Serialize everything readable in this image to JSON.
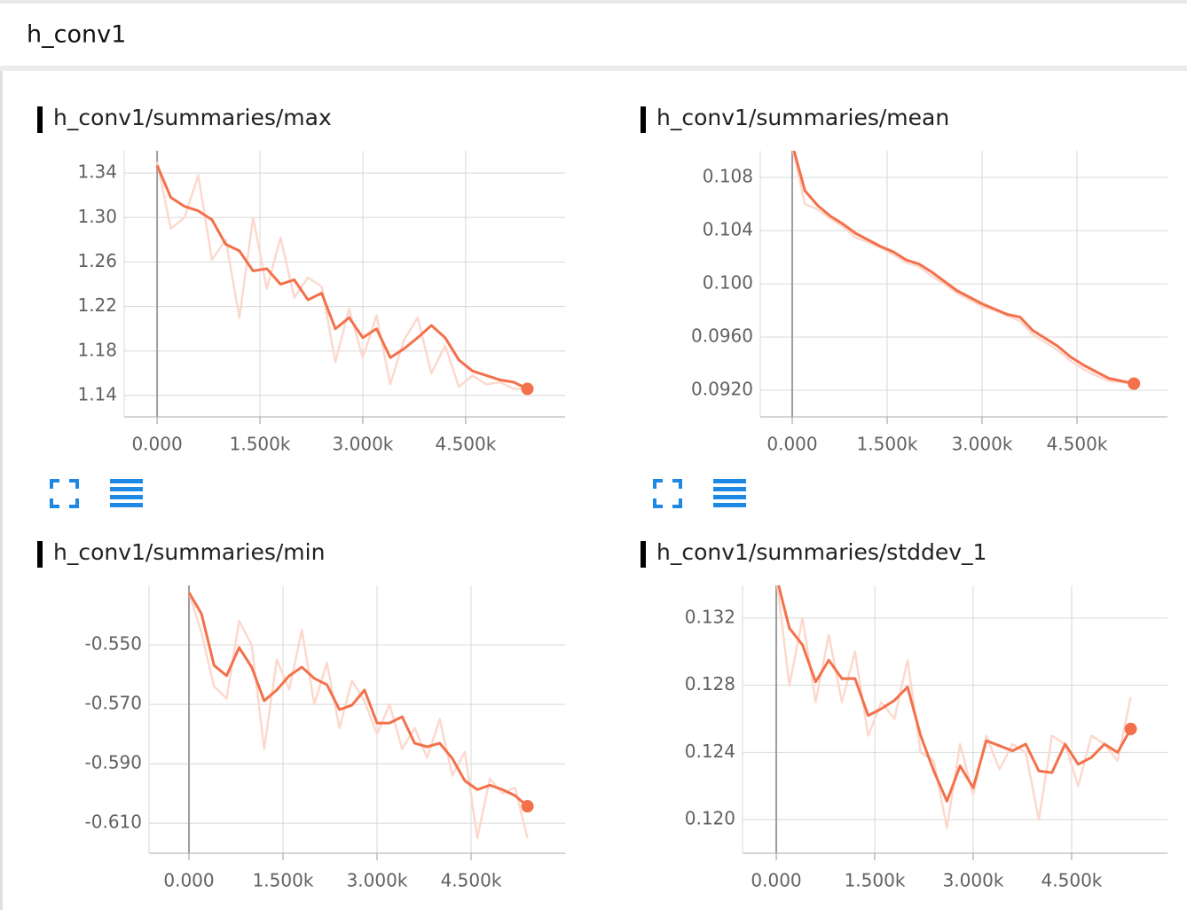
{
  "header": {
    "title": "h_conv1"
  },
  "chart_data": [
    {
      "type": "line",
      "title": "h_conv1/summaries/max",
      "x": [
        0,
        200,
        400,
        600,
        800,
        1000,
        1200,
        1400,
        1600,
        1800,
        2000,
        2200,
        2400,
        2600,
        2800,
        3000,
        3200,
        3400,
        3600,
        3800,
        4000,
        4200,
        4400,
        4600,
        4800,
        5000,
        5200,
        5400
      ],
      "series": [
        {
          "color": "#fcd9ce",
          "values": [
            1.35,
            1.29,
            1.3,
            1.338,
            1.262,
            1.28,
            1.21,
            1.3,
            1.236,
            1.282,
            1.228,
            1.246,
            1.238,
            1.17,
            1.218,
            1.174,
            1.212,
            1.15,
            1.19,
            1.21,
            1.16,
            1.185,
            1.148,
            1.158,
            1.15,
            1.152,
            1.146,
            1.146
          ]
        },
        {
          "color": "#f4704a",
          "values": [
            1.347,
            1.318,
            1.31,
            1.306,
            1.298,
            1.276,
            1.27,
            1.252,
            1.254,
            1.24,
            1.244,
            1.226,
            1.232,
            1.2,
            1.21,
            1.192,
            1.2,
            1.174,
            1.182,
            1.192,
            1.203,
            1.192,
            1.172,
            1.162,
            1.158,
            1.154,
            1.152,
            1.146
          ]
        }
      ],
      "xlim": [
        -480,
        5950
      ],
      "ylim": [
        1.1208,
        1.36
      ],
      "xticks": [
        {
          "value": 0,
          "label": "0.000"
        },
        {
          "value": 1500,
          "label": "1.500k"
        },
        {
          "value": 3000,
          "label": "3.000k"
        },
        {
          "value": 4500,
          "label": "4.500k"
        }
      ],
      "yticks": [
        1.34,
        {
          "value": 1.3,
          "label": "1.30"
        },
        1.26,
        1.22,
        1.18,
        1.14
      ],
      "grid": true
    },
    {
      "type": "line",
      "title": "h_conv1/summaries/mean",
      "x": [
        0,
        200,
        400,
        600,
        800,
        1000,
        1200,
        1400,
        1600,
        1800,
        2000,
        2200,
        2400,
        2600,
        2800,
        3000,
        3200,
        3400,
        3600,
        3800,
        4000,
        4200,
        4400,
        4600,
        4800,
        5000,
        5200,
        5400
      ],
      "series": [
        {
          "color": "#fcd9ce",
          "values": [
            0.1103,
            0.106,
            0.1056,
            0.1049,
            0.1043,
            0.1035,
            0.1031,
            0.1027,
            0.1022,
            0.1016,
            0.1013,
            0.1006,
            0.1,
            0.0993,
            0.0988,
            0.0983,
            0.098,
            0.0976,
            0.0972,
            0.0962,
            0.0956,
            0.095,
            0.0942,
            0.0936,
            0.0931,
            0.0927,
            0.0926,
            0.0925
          ]
        },
        {
          "color": "#f4704a",
          "values": [
            0.1105,
            0.107,
            0.1059,
            0.1051,
            0.1045,
            0.1038,
            0.1033,
            0.1028,
            0.1024,
            0.1018,
            0.1015,
            0.1009,
            0.1002,
            0.0995,
            0.099,
            0.0985,
            0.0981,
            0.0977,
            0.0975,
            0.0965,
            0.0959,
            0.0953,
            0.0945,
            0.0939,
            0.0934,
            0.0929,
            0.0927,
            0.0925
          ]
        }
      ],
      "xlim": [
        -505,
        5930
      ],
      "ylim": [
        0.09,
        0.11
      ],
      "xticks": [
        {
          "value": 0,
          "label": "0.000"
        },
        {
          "value": 1500,
          "label": "1.500k"
        },
        {
          "value": 3000,
          "label": "3.000k"
        },
        {
          "value": 4500,
          "label": "4.500k"
        }
      ],
      "yticks": [
        0.108,
        0.104,
        {
          "value": 0.1,
          "label": "0.100"
        },
        {
          "value": 0.096,
          "label": "0.0960"
        },
        {
          "value": 0.092,
          "label": "0.0920"
        }
      ],
      "grid": true
    },
    {
      "type": "line",
      "title": "h_conv1/summaries/min",
      "x": [
        0,
        200,
        400,
        600,
        800,
        1000,
        1200,
        1400,
        1600,
        1800,
        2000,
        2200,
        2400,
        2600,
        2800,
        3000,
        3200,
        3400,
        3600,
        3800,
        4000,
        4200,
        4400,
        4600,
        4800,
        5000,
        5200,
        5400
      ],
      "series": [
        {
          "color": "#fcd9ce",
          "values": [
            -0.5324,
            -0.546,
            -0.564,
            -0.568,
            -0.542,
            -0.55,
            -0.585,
            -0.555,
            -0.565,
            -0.545,
            -0.57,
            -0.556,
            -0.578,
            -0.562,
            -0.569,
            -0.58,
            -0.57,
            -0.585,
            -0.578,
            -0.588,
            -0.575,
            -0.594,
            -0.586,
            -0.615,
            -0.595,
            -0.6,
            -0.598,
            -0.615
          ]
        },
        {
          "color": "#f4704a",
          "values": [
            -0.5324,
            -0.5396,
            -0.5569,
            -0.5604,
            -0.5509,
            -0.5575,
            -0.5688,
            -0.5652,
            -0.5604,
            -0.5575,
            -0.5613,
            -0.5634,
            -0.5718,
            -0.5703,
            -0.5652,
            -0.5763,
            -0.5763,
            -0.5742,
            -0.5831,
            -0.5843,
            -0.5831,
            -0.5882,
            -0.5957,
            -0.5987,
            -0.5972,
            -0.5987,
            -0.6007,
            -0.6043
          ]
        }
      ],
      "xlim": [
        -637,
        6000
      ],
      "ylim": [
        -0.6201,
        -0.53
      ],
      "xticks": [
        {
          "value": 0,
          "label": "0.000"
        },
        {
          "value": 1500,
          "label": "1.500k"
        },
        {
          "value": 3000,
          "label": "3.000k"
        },
        {
          "value": 4500,
          "label": "4.500k"
        }
      ],
      "yticks": [
        {
          "value": -0.55,
          "label": "-0.550"
        },
        {
          "value": -0.57,
          "label": "-0.570"
        },
        {
          "value": -0.59,
          "label": "-0.590"
        },
        {
          "value": -0.61,
          "label": "-0.610"
        }
      ],
      "grid": true
    },
    {
      "type": "line",
      "title": "h_conv1/summaries/stddev_1",
      "x": [
        0,
        200,
        400,
        600,
        800,
        1000,
        1200,
        1400,
        1600,
        1800,
        2000,
        2200,
        2400,
        2600,
        2800,
        3000,
        3200,
        3400,
        3600,
        3800,
        4000,
        4200,
        4400,
        4600,
        4800,
        5000,
        5200,
        5400
      ],
      "series": [
        {
          "color": "#fcd9ce",
          "values": [
            0.1345,
            0.128,
            0.132,
            0.127,
            0.131,
            0.127,
            0.13,
            0.125,
            0.127,
            0.126,
            0.1295,
            0.124,
            0.1235,
            0.1195,
            0.1245,
            0.1215,
            0.125,
            0.123,
            0.1245,
            0.124,
            0.12,
            0.125,
            0.1245,
            0.122,
            0.125,
            0.1245,
            0.1235,
            0.1273
          ]
        },
        {
          "color": "#f4704a",
          "values": [
            0.1345,
            0.1314,
            0.1304,
            0.1282,
            0.1295,
            0.1284,
            0.1284,
            0.1262,
            0.1266,
            0.1271,
            0.1279,
            0.125,
            0.1229,
            0.1211,
            0.1232,
            0.1219,
            0.1247,
            0.1244,
            0.1241,
            0.1245,
            0.1229,
            0.1228,
            0.1245,
            0.1233,
            0.1237,
            0.1245,
            0.124,
            0.1254
          ]
        }
      ],
      "xlim": [
        -514,
        5960
      ],
      "ylim": [
        0.118,
        0.13395
      ],
      "xticks": [
        {
          "value": 0,
          "label": "0.000"
        },
        {
          "value": 1500,
          "label": "1.500k"
        },
        {
          "value": 3000,
          "label": "3.000k"
        },
        {
          "value": 4500,
          "label": "4.500k"
        }
      ],
      "yticks": [
        0.132,
        0.128,
        0.124,
        {
          "value": 0.12,
          "label": "0.120"
        }
      ],
      "grid": true
    }
  ]
}
